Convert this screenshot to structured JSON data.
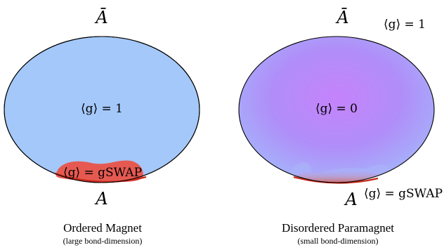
{
  "left_panel": {
    "top_label": "Ā",
    "bottom_label": "A",
    "center_label": "⟨g⟩ = 1",
    "edge_label": "⟨g⟩ = gSWAP",
    "caption_title": "Ordered Magnet",
    "caption_sub": "(large bond-dimension)",
    "fill_color": "#a4c8fa",
    "edge_color": "#e8544a"
  },
  "right_panel": {
    "top_label": "Ā",
    "bottom_label": "A",
    "center_label": "⟨g⟩ = 0",
    "corner_label": "⟨g⟩ = 1",
    "edge_label": "⟨g⟩ = gSWAP",
    "caption_title": "Disordered Paramagnet",
    "caption_sub": "(small bond-dimension)",
    "center_color": "#c583fb",
    "outer_color": "#a4b6fa",
    "edge_color": "#d8574a"
  }
}
